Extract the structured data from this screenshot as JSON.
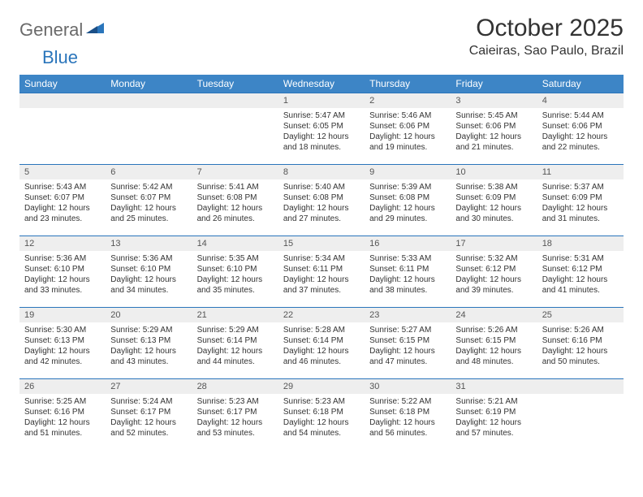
{
  "logo": {
    "text1": "General",
    "text2": "Blue"
  },
  "title": "October 2025",
  "location": "Caieiras, Sao Paulo, Brazil",
  "header_bg": "#3d85c6",
  "accent": "#2a75bb",
  "day_header_bg": "#eeeeee",
  "days_of_week": [
    "Sunday",
    "Monday",
    "Tuesday",
    "Wednesday",
    "Thursday",
    "Friday",
    "Saturday"
  ],
  "weeks": [
    [
      null,
      null,
      null,
      {
        "n": "1",
        "sr": "Sunrise: 5:47 AM",
        "ss": "Sunset: 6:05 PM",
        "dl1": "Daylight: 12 hours",
        "dl2": "and 18 minutes."
      },
      {
        "n": "2",
        "sr": "Sunrise: 5:46 AM",
        "ss": "Sunset: 6:06 PM",
        "dl1": "Daylight: 12 hours",
        "dl2": "and 19 minutes."
      },
      {
        "n": "3",
        "sr": "Sunrise: 5:45 AM",
        "ss": "Sunset: 6:06 PM",
        "dl1": "Daylight: 12 hours",
        "dl2": "and 21 minutes."
      },
      {
        "n": "4",
        "sr": "Sunrise: 5:44 AM",
        "ss": "Sunset: 6:06 PM",
        "dl1": "Daylight: 12 hours",
        "dl2": "and 22 minutes."
      }
    ],
    [
      {
        "n": "5",
        "sr": "Sunrise: 5:43 AM",
        "ss": "Sunset: 6:07 PM",
        "dl1": "Daylight: 12 hours",
        "dl2": "and 23 minutes."
      },
      {
        "n": "6",
        "sr": "Sunrise: 5:42 AM",
        "ss": "Sunset: 6:07 PM",
        "dl1": "Daylight: 12 hours",
        "dl2": "and 25 minutes."
      },
      {
        "n": "7",
        "sr": "Sunrise: 5:41 AM",
        "ss": "Sunset: 6:08 PM",
        "dl1": "Daylight: 12 hours",
        "dl2": "and 26 minutes."
      },
      {
        "n": "8",
        "sr": "Sunrise: 5:40 AM",
        "ss": "Sunset: 6:08 PM",
        "dl1": "Daylight: 12 hours",
        "dl2": "and 27 minutes."
      },
      {
        "n": "9",
        "sr": "Sunrise: 5:39 AM",
        "ss": "Sunset: 6:08 PM",
        "dl1": "Daylight: 12 hours",
        "dl2": "and 29 minutes."
      },
      {
        "n": "10",
        "sr": "Sunrise: 5:38 AM",
        "ss": "Sunset: 6:09 PM",
        "dl1": "Daylight: 12 hours",
        "dl2": "and 30 minutes."
      },
      {
        "n": "11",
        "sr": "Sunrise: 5:37 AM",
        "ss": "Sunset: 6:09 PM",
        "dl1": "Daylight: 12 hours",
        "dl2": "and 31 minutes."
      }
    ],
    [
      {
        "n": "12",
        "sr": "Sunrise: 5:36 AM",
        "ss": "Sunset: 6:10 PM",
        "dl1": "Daylight: 12 hours",
        "dl2": "and 33 minutes."
      },
      {
        "n": "13",
        "sr": "Sunrise: 5:36 AM",
        "ss": "Sunset: 6:10 PM",
        "dl1": "Daylight: 12 hours",
        "dl2": "and 34 minutes."
      },
      {
        "n": "14",
        "sr": "Sunrise: 5:35 AM",
        "ss": "Sunset: 6:10 PM",
        "dl1": "Daylight: 12 hours",
        "dl2": "and 35 minutes."
      },
      {
        "n": "15",
        "sr": "Sunrise: 5:34 AM",
        "ss": "Sunset: 6:11 PM",
        "dl1": "Daylight: 12 hours",
        "dl2": "and 37 minutes."
      },
      {
        "n": "16",
        "sr": "Sunrise: 5:33 AM",
        "ss": "Sunset: 6:11 PM",
        "dl1": "Daylight: 12 hours",
        "dl2": "and 38 minutes."
      },
      {
        "n": "17",
        "sr": "Sunrise: 5:32 AM",
        "ss": "Sunset: 6:12 PM",
        "dl1": "Daylight: 12 hours",
        "dl2": "and 39 minutes."
      },
      {
        "n": "18",
        "sr": "Sunrise: 5:31 AM",
        "ss": "Sunset: 6:12 PM",
        "dl1": "Daylight: 12 hours",
        "dl2": "and 41 minutes."
      }
    ],
    [
      {
        "n": "19",
        "sr": "Sunrise: 5:30 AM",
        "ss": "Sunset: 6:13 PM",
        "dl1": "Daylight: 12 hours",
        "dl2": "and 42 minutes."
      },
      {
        "n": "20",
        "sr": "Sunrise: 5:29 AM",
        "ss": "Sunset: 6:13 PM",
        "dl1": "Daylight: 12 hours",
        "dl2": "and 43 minutes."
      },
      {
        "n": "21",
        "sr": "Sunrise: 5:29 AM",
        "ss": "Sunset: 6:14 PM",
        "dl1": "Daylight: 12 hours",
        "dl2": "and 44 minutes."
      },
      {
        "n": "22",
        "sr": "Sunrise: 5:28 AM",
        "ss": "Sunset: 6:14 PM",
        "dl1": "Daylight: 12 hours",
        "dl2": "and 46 minutes."
      },
      {
        "n": "23",
        "sr": "Sunrise: 5:27 AM",
        "ss": "Sunset: 6:15 PM",
        "dl1": "Daylight: 12 hours",
        "dl2": "and 47 minutes."
      },
      {
        "n": "24",
        "sr": "Sunrise: 5:26 AM",
        "ss": "Sunset: 6:15 PM",
        "dl1": "Daylight: 12 hours",
        "dl2": "and 48 minutes."
      },
      {
        "n": "25",
        "sr": "Sunrise: 5:26 AM",
        "ss": "Sunset: 6:16 PM",
        "dl1": "Daylight: 12 hours",
        "dl2": "and 50 minutes."
      }
    ],
    [
      {
        "n": "26",
        "sr": "Sunrise: 5:25 AM",
        "ss": "Sunset: 6:16 PM",
        "dl1": "Daylight: 12 hours",
        "dl2": "and 51 minutes."
      },
      {
        "n": "27",
        "sr": "Sunrise: 5:24 AM",
        "ss": "Sunset: 6:17 PM",
        "dl1": "Daylight: 12 hours",
        "dl2": "and 52 minutes."
      },
      {
        "n": "28",
        "sr": "Sunrise: 5:23 AM",
        "ss": "Sunset: 6:17 PM",
        "dl1": "Daylight: 12 hours",
        "dl2": "and 53 minutes."
      },
      {
        "n": "29",
        "sr": "Sunrise: 5:23 AM",
        "ss": "Sunset: 6:18 PM",
        "dl1": "Daylight: 12 hours",
        "dl2": "and 54 minutes."
      },
      {
        "n": "30",
        "sr": "Sunrise: 5:22 AM",
        "ss": "Sunset: 6:18 PM",
        "dl1": "Daylight: 12 hours",
        "dl2": "and 56 minutes."
      },
      {
        "n": "31",
        "sr": "Sunrise: 5:21 AM",
        "ss": "Sunset: 6:19 PM",
        "dl1": "Daylight: 12 hours",
        "dl2": "and 57 minutes."
      },
      null
    ]
  ]
}
